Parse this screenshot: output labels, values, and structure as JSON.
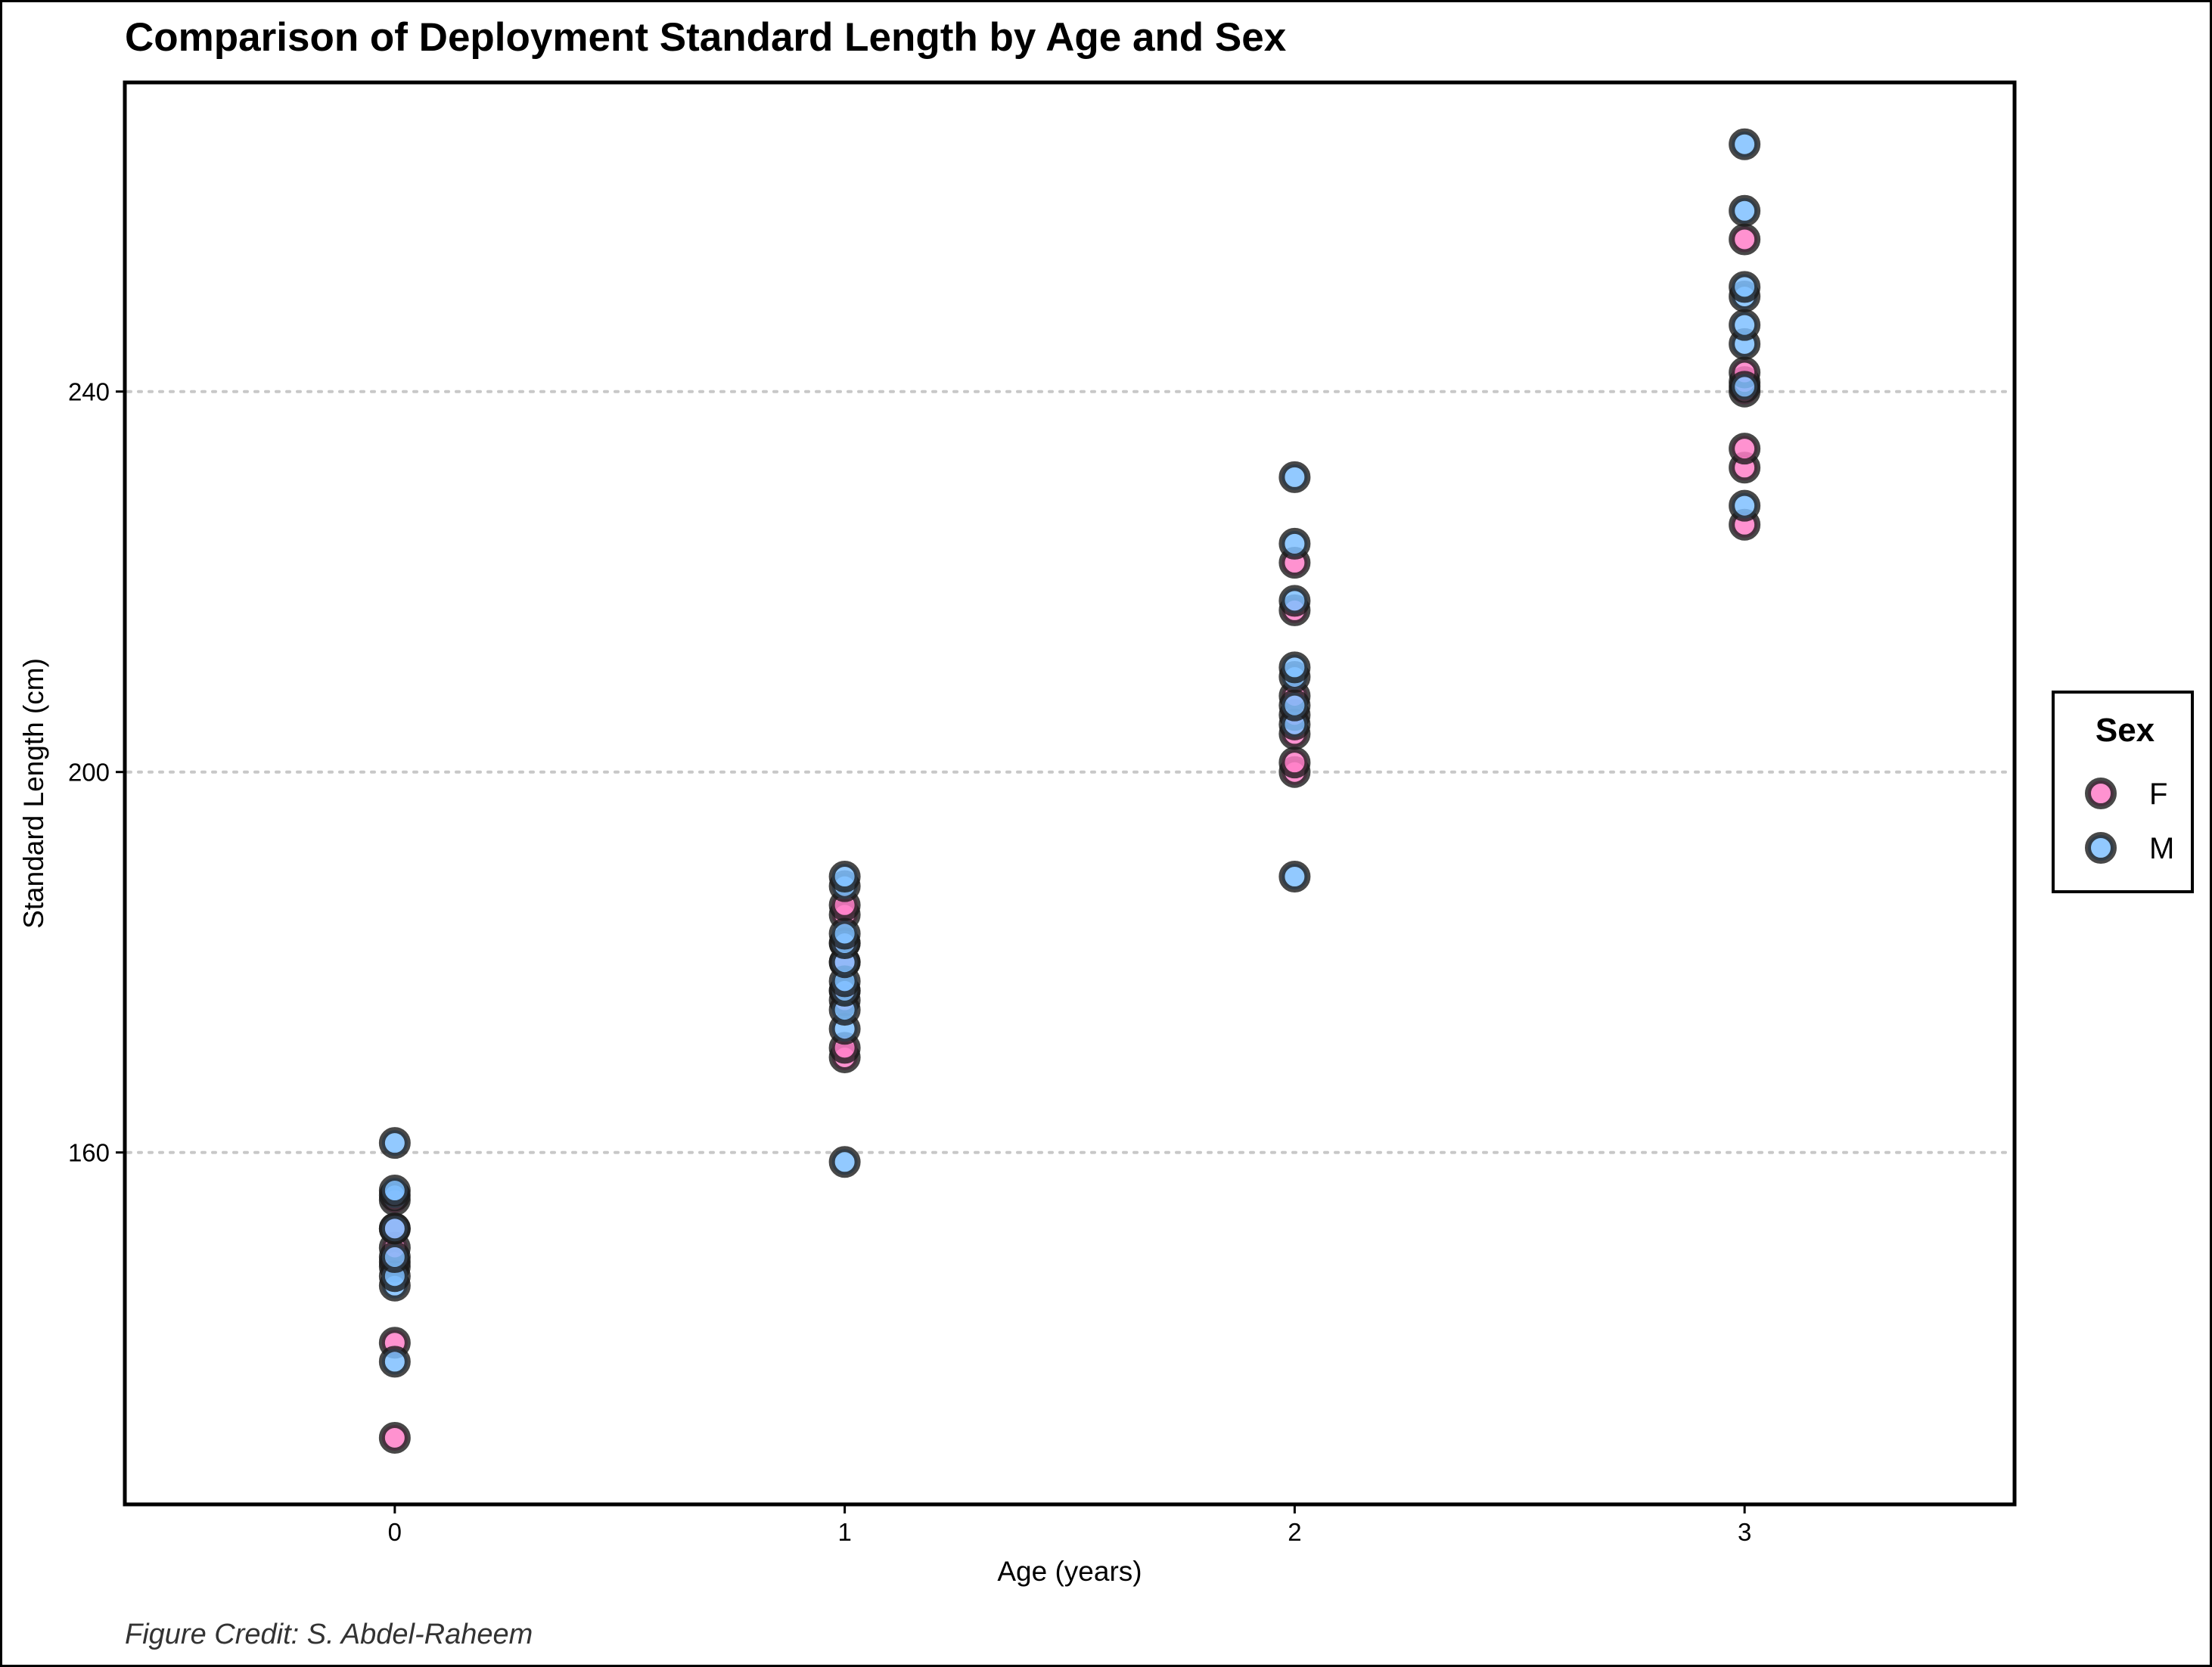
{
  "colors": {
    "F": "#ff7fc8",
    "M": "#7fbfff",
    "outline": "#1a1a1a",
    "grid": "#c8c8c8"
  },
  "chart_data": {
    "type": "scatter",
    "title": "Comparison of Deployment Standard Length by Age and Sex",
    "xlabel": "Age (years)",
    "ylabel": "Standard Length (cm)",
    "caption": "Figure Credit: S. Abdel-Raheem",
    "xlim": [
      -0.6,
      3.6
    ],
    "ylim": [
      123,
      272.5
    ],
    "x_ticks": [
      0,
      1,
      2,
      3
    ],
    "x_tick_labels": [
      "0",
      "1",
      "2",
      "3"
    ],
    "y_ticks": [
      160,
      200,
      240
    ],
    "y_tick_labels": [
      "160",
      "200",
      "240"
    ],
    "grid": "horizontal major lines, dotted",
    "legend": {
      "title": "Sex",
      "placement": "right",
      "entries": [
        "F",
        "M"
      ]
    },
    "series": [
      {
        "name": "F",
        "points": [
          [
            0,
            130
          ],
          [
            0,
            140
          ],
          [
            0,
            148
          ],
          [
            0,
            148.5
          ],
          [
            0,
            150
          ],
          [
            0,
            152
          ],
          [
            0,
            155
          ],
          [
            1,
            170
          ],
          [
            1,
            171
          ],
          [
            1,
            176
          ],
          [
            1,
            177
          ],
          [
            1,
            180
          ],
          [
            1,
            182
          ],
          [
            1,
            185
          ],
          [
            1,
            186
          ],
          [
            2,
            200
          ],
          [
            2,
            201
          ],
          [
            2,
            204
          ],
          [
            2,
            206
          ],
          [
            2,
            208
          ],
          [
            2,
            217
          ],
          [
            2,
            222
          ],
          [
            3,
            226
          ],
          [
            3,
            232
          ],
          [
            3,
            234
          ],
          [
            3,
            240
          ],
          [
            3,
            241
          ],
          [
            3,
            242
          ],
          [
            3,
            256
          ]
        ]
      },
      {
        "name": "M",
        "points": [
          [
            0,
            138
          ],
          [
            0,
            146
          ],
          [
            0,
            147
          ],
          [
            0,
            149
          ],
          [
            0,
            152
          ],
          [
            0,
            155.5
          ],
          [
            0,
            156
          ],
          [
            0,
            161
          ],
          [
            1,
            159
          ],
          [
            1,
            173
          ],
          [
            1,
            175
          ],
          [
            1,
            177
          ],
          [
            1,
            178
          ],
          [
            1,
            180
          ],
          [
            1,
            182
          ],
          [
            1,
            183
          ],
          [
            1,
            188
          ],
          [
            1,
            189
          ],
          [
            2,
            189
          ],
          [
            2,
            205
          ],
          [
            2,
            207
          ],
          [
            2,
            210
          ],
          [
            2,
            211
          ],
          [
            2,
            218
          ],
          [
            2,
            224
          ],
          [
            2,
            231
          ],
          [
            3,
            228
          ],
          [
            3,
            240.5
          ],
          [
            3,
            245
          ],
          [
            3,
            247
          ],
          [
            3,
            250
          ],
          [
            3,
            251
          ],
          [
            3,
            259
          ],
          [
            3,
            266
          ]
        ]
      }
    ]
  }
}
